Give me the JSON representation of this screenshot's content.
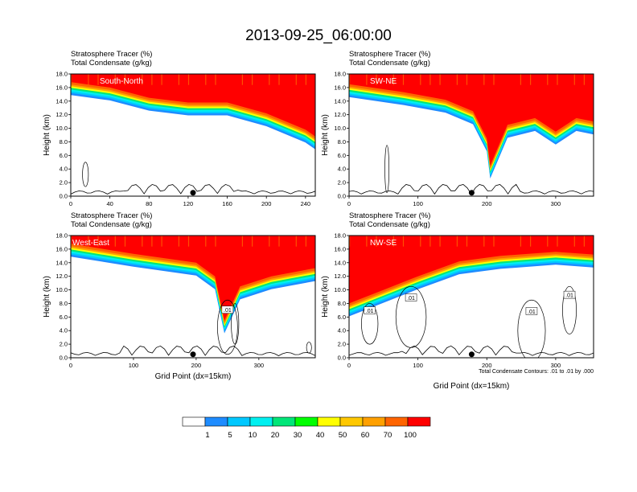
{
  "figure": {
    "title": "2013-09-25_06:00:00",
    "contour_note": "Total Condensate Contours: .01 to .01 by .000"
  },
  "chart_data": [
    {
      "type": "heatmap",
      "panel": "South-North",
      "title_lines": [
        "Stratosphere Tracer   (%)",
        "Total Condensate   (g/kg)"
      ],
      "ylabel": "Height (km)",
      "xlabel": "",
      "xlim": [
        0,
        250
      ],
      "ylim": [
        0,
        18
      ],
      "xticks": [
        0,
        40,
        80,
        120,
        160,
        200,
        240
      ],
      "yticks": [
        "0.0",
        "2.0",
        "4.0",
        "6.0",
        "8.0",
        "10.0",
        "12.0",
        "14.0",
        "16.0",
        "18.0"
      ],
      "tracer_base_km": [
        [
          0,
          15.8
        ],
        [
          40,
          15.0
        ],
        [
          80,
          13.5
        ],
        [
          120,
          12.8
        ],
        [
          160,
          12.8
        ],
        [
          200,
          11.2
        ],
        [
          240,
          8.8
        ],
        [
          250,
          7.8
        ]
      ],
      "marker_x": 125,
      "contour_labels": []
    },
    {
      "type": "heatmap",
      "panel": "SW-NE",
      "title_lines": [
        "Stratosphere Tracer   (%)",
        "Total Condensate   (g/kg)"
      ],
      "ylabel": "Height (km)",
      "xlabel": "",
      "xlim": [
        0,
        355
      ],
      "ylim": [
        0,
        18
      ],
      "xticks": [
        0,
        100,
        200,
        300
      ],
      "yticks": [
        "0.0",
        "2.0",
        "4.0",
        "6.0",
        "8.0",
        "10.0",
        "12.0",
        "14.0",
        "16.0",
        "18.0"
      ],
      "tracer_base_km": [
        [
          0,
          15.5
        ],
        [
          80,
          14.3
        ],
        [
          140,
          13.2
        ],
        [
          180,
          11.5
        ],
        [
          200,
          7.5
        ],
        [
          205,
          3.5
        ],
        [
          230,
          9.5
        ],
        [
          270,
          10.5
        ],
        [
          300,
          8.5
        ],
        [
          330,
          10.5
        ],
        [
          355,
          10.0
        ]
      ],
      "marker_x": 178,
      "contour_labels": []
    },
    {
      "type": "heatmap",
      "panel": "West-East",
      "title_lines": [
        "Stratosphere Tracer   (%)",
        "Total Condensate   (g/kg)"
      ],
      "ylabel": "Height (km)",
      "xlabel": "Grid Point (dx=15km)",
      "xlim": [
        0,
        390
      ],
      "ylim": [
        0,
        18
      ],
      "xticks": [
        0,
        100,
        200,
        300
      ],
      "yticks": [
        "0.0",
        "2.0",
        "4.0",
        "6.0",
        "8.0",
        "10.0",
        "12.0",
        "14.0",
        "16.0",
        "18.0"
      ],
      "tracer_base_km": [
        [
          0,
          15.8
        ],
        [
          100,
          14.3
        ],
        [
          200,
          13.0
        ],
        [
          230,
          11.0
        ],
        [
          245,
          4.5
        ],
        [
          270,
          9.5
        ],
        [
          320,
          11.0
        ],
        [
          390,
          12.2
        ]
      ],
      "marker_x": 195,
      "contour_labels": [
        ".01"
      ]
    },
    {
      "type": "heatmap",
      "panel": "NW-SE",
      "title_lines": [
        "Stratosphere Tracer   (%)",
        "Total Condensate   (g/kg)"
      ],
      "ylabel": "Height (km)",
      "xlabel": "Grid Point (dx=15km)",
      "xlim": [
        0,
        355
      ],
      "ylim": [
        0,
        18
      ],
      "xticks": [
        0,
        100,
        200,
        300
      ],
      "yticks": [
        "0.0",
        "2.0",
        "4.0",
        "6.0",
        "8.0",
        "10.0",
        "12.0",
        "14.0",
        "16.0",
        "18.0"
      ],
      "tracer_base_km": [
        [
          0,
          7.0
        ],
        [
          50,
          9.0
        ],
        [
          100,
          11.0
        ],
        [
          160,
          13.2
        ],
        [
          220,
          14.0
        ],
        [
          300,
          14.6
        ],
        [
          355,
          14.2
        ]
      ],
      "marker_x": 178,
      "contour_labels": [
        ".01",
        ".01",
        ".01",
        ".01"
      ]
    }
  ],
  "colorbar": {
    "labels": [
      "1",
      "5",
      "10",
      "20",
      "30",
      "40",
      "50",
      "60",
      "70",
      "100"
    ],
    "colors": [
      "#ffffff",
      "#1e8cff",
      "#00c8ff",
      "#00f0f0",
      "#00e678",
      "#00ff00",
      "#a0f000",
      "#ffff00",
      "#ffc800",
      "#ffa000",
      "#ff6400",
      "#ff0000"
    ]
  }
}
